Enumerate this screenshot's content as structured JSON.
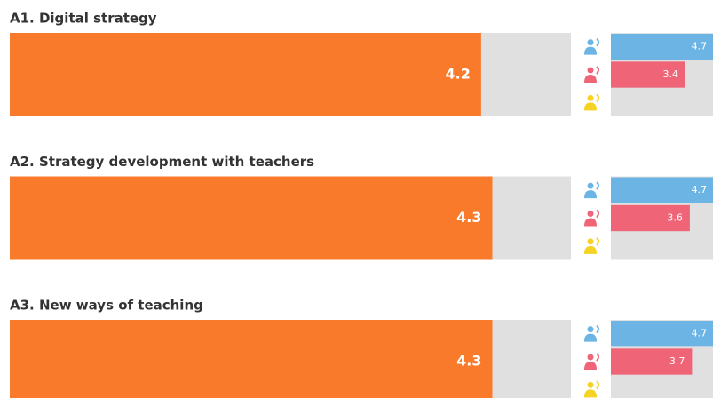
{
  "chart_data": {
    "type": "bar",
    "categories": [
      "A1. Digital strategy",
      "A2. Strategy development with teachers",
      "A3. New ways of teaching"
    ],
    "xlim": [
      0,
      5
    ],
    "overall": {
      "color": "#f97a2a",
      "values": [
        4.2,
        4.3,
        4.3
      ]
    },
    "series": [
      {
        "color": "#6cb4e4",
        "values": [
          4.7,
          4.7,
          4.7
        ]
      },
      {
        "color": "#f06478",
        "values": [
          3.4,
          3.6,
          3.7
        ]
      },
      {
        "color": "#f5d224",
        "values": [
          null,
          null,
          null
        ]
      }
    ]
  }
}
